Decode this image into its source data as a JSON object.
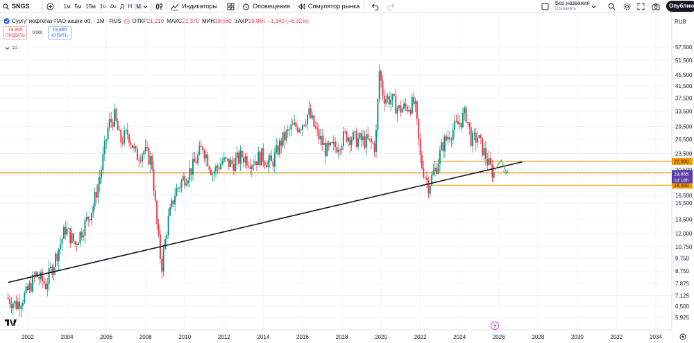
{
  "toolbar": {
    "symbol": "SNGS",
    "intervals": [
      "1м",
      "5м",
      "15м",
      "1ч",
      "4ч",
      "Д",
      "Н",
      "М"
    ],
    "active_interval": "М",
    "indicators_label": "Индикаторы",
    "alerts_label": "Оповещения",
    "replay_label": "Симулятор рынка",
    "layout_name": "Без названия",
    "layout_status": "Сохранить",
    "publish_label": "Опубликов"
  },
  "legend": {
    "title": "Сургутнефтегаз ПАО акции об. · 1М · RUS",
    "open_label": "ОТКР",
    "open": "21,210",
    "high_label": "МАКС",
    "high": "21,370",
    "low_label": "МИН",
    "low": "19,560",
    "close_label": "ЗАКР",
    "close": "19,865",
    "change": "−1,340 (−6,32%)"
  },
  "trade": {
    "sell_price": "19,865",
    "sell_label": "ПРОДАТЬ",
    "spread": "0,000",
    "buy_price": "19,865",
    "buy_label": "КУПИТЬ"
  },
  "studies": {
    "count": "10"
  },
  "colors": {
    "up": "#089981",
    "down": "#f23645",
    "level": "#f59b00",
    "trend": "#131722",
    "current": "#5b3fa8",
    "arrow": "#4caf50"
  },
  "chart_data": {
    "type": "candlestick",
    "currency": "RUB",
    "y_scale": "log",
    "y_ticks": [
      "57,500",
      "51,500",
      "45,500",
      "41,500",
      "37,500",
      "33,500",
      "29,500",
      "26,500",
      "23,500",
      "20,500",
      "19,500",
      "16,500",
      "15,500",
      "13,500",
      "12,000",
      "10,750",
      "9,750",
      "8,750",
      "7,875",
      "7,125",
      "6,500",
      "5,925"
    ],
    "y_tick_values": [
      0.575,
      0.515,
      0.455,
      0.415,
      0.375,
      0.335,
      0.295,
      0.265,
      0.235,
      0.205,
      0.195,
      0.165,
      0.155,
      0.135,
      0.12,
      0.1075,
      0.0975,
      0.0875,
      0.07875,
      0.07125,
      0.065,
      0.05925
    ],
    "x_ticks": [
      "2002",
      "2004",
      "2006",
      "2008",
      "2010",
      "2012",
      "2014",
      "2016",
      "2018",
      "2020",
      "2022",
      "2024",
      "2026",
      "2028",
      "2030",
      "2032",
      "2034"
    ],
    "x_tick_years": [
      2002,
      2004,
      2006,
      2008,
      2010,
      2012,
      2014,
      2016,
      2018,
      2020,
      2022,
      2024,
      2026,
      2028,
      2030,
      2032,
      2034
    ],
    "anchors": [
      [
        2001.0,
        0.07
      ],
      [
        2001.5,
        0.066
      ],
      [
        2002.0,
        0.072
      ],
      [
        2002.5,
        0.085
      ],
      [
        2003.0,
        0.078
      ],
      [
        2003.5,
        0.098
      ],
      [
        2004.0,
        0.125
      ],
      [
        2004.5,
        0.11
      ],
      [
        2005.0,
        0.13
      ],
      [
        2005.4,
        0.15
      ],
      [
        2005.8,
        0.2
      ],
      [
        2006.2,
        0.3
      ],
      [
        2006.5,
        0.32
      ],
      [
        2006.8,
        0.26
      ],
      [
        2007.2,
        0.28
      ],
      [
        2007.6,
        0.23
      ],
      [
        2008.0,
        0.24
      ],
      [
        2008.4,
        0.22
      ],
      [
        2008.7,
        0.12
      ],
      [
        2008.9,
        0.09
      ],
      [
        2009.2,
        0.13
      ],
      [
        2009.6,
        0.17
      ],
      [
        2010.0,
        0.19
      ],
      [
        2010.5,
        0.21
      ],
      [
        2011.0,
        0.25
      ],
      [
        2011.5,
        0.2
      ],
      [
        2012.0,
        0.22
      ],
      [
        2012.5,
        0.215
      ],
      [
        2013.0,
        0.23
      ],
      [
        2013.5,
        0.22
      ],
      [
        2014.0,
        0.23
      ],
      [
        2014.5,
        0.215
      ],
      [
        2015.0,
        0.26
      ],
      [
        2015.5,
        0.29
      ],
      [
        2016.0,
        0.3
      ],
      [
        2016.4,
        0.33
      ],
      [
        2016.8,
        0.28
      ],
      [
        2017.3,
        0.24
      ],
      [
        2017.8,
        0.25
      ],
      [
        2018.3,
        0.275
      ],
      [
        2018.8,
        0.265
      ],
      [
        2019.4,
        0.26
      ],
      [
        2019.8,
        0.25
      ],
      [
        2020.0,
        0.47
      ],
      [
        2020.2,
        0.38
      ],
      [
        2020.6,
        0.37
      ],
      [
        2021.0,
        0.34
      ],
      [
        2021.5,
        0.35
      ],
      [
        2021.8,
        0.36
      ],
      [
        2022.1,
        0.22
      ],
      [
        2022.5,
        0.18
      ],
      [
        2022.9,
        0.21
      ],
      [
        2023.2,
        0.25
      ],
      [
        2023.6,
        0.28
      ],
      [
        2024.0,
        0.3
      ],
      [
        2024.4,
        0.33
      ],
      [
        2024.7,
        0.26
      ],
      [
        2025.0,
        0.27
      ],
      [
        2025.3,
        0.24
      ],
      [
        2025.6,
        0.212
      ],
      [
        2025.8,
        0.19865
      ]
    ],
    "levels": [
      {
        "value": 0.22,
        "label": "22,000"
      },
      {
        "value": 0.2,
        "label": ""
      },
      {
        "value": 0.18,
        "label": "18,000"
      }
    ],
    "current": {
      "value": 0.19865,
      "label": "19,865",
      "countdown": "1d 18h"
    },
    "trendline": [
      [
        2001.0,
        0.0795
      ],
      [
        2027.2,
        0.219
      ]
    ]
  }
}
